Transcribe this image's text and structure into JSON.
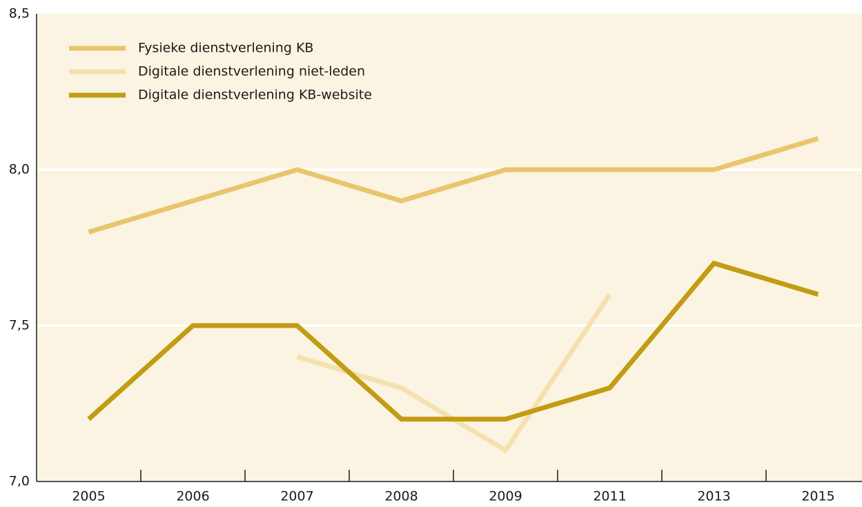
{
  "chart_data": {
    "type": "line",
    "categories": [
      "2005",
      "2006",
      "2007",
      "2008",
      "2009",
      "2011",
      "2013",
      "2015"
    ],
    "series": [
      {
        "name": "Fysieke dienstverlening KB",
        "color": "#e8c56e",
        "values": [
          7.8,
          7.9,
          8.0,
          7.9,
          8.0,
          8.0,
          8.0,
          8.1
        ]
      },
      {
        "name": "Digitale dienstverlening niet-leden",
        "color": "#f4e1ae",
        "values": [
          null,
          null,
          7.4,
          7.3,
          7.1,
          7.6,
          null,
          null
        ]
      },
      {
        "name": "Digitale dienstverlening KB-website",
        "color": "#c29c12",
        "values": [
          7.2,
          7.5,
          7.5,
          7.2,
          7.2,
          7.3,
          7.7,
          7.6
        ]
      }
    ],
    "ylim": [
      7.0,
      8.5
    ],
    "yticks": [
      {
        "value": 7.0,
        "label": "7,0"
      },
      {
        "value": 7.5,
        "label": "7,5"
      },
      {
        "value": 8.0,
        "label": "8,0"
      },
      {
        "value": 8.5,
        "label": "8,5"
      }
    ],
    "grid": true,
    "legend": "top-left"
  }
}
